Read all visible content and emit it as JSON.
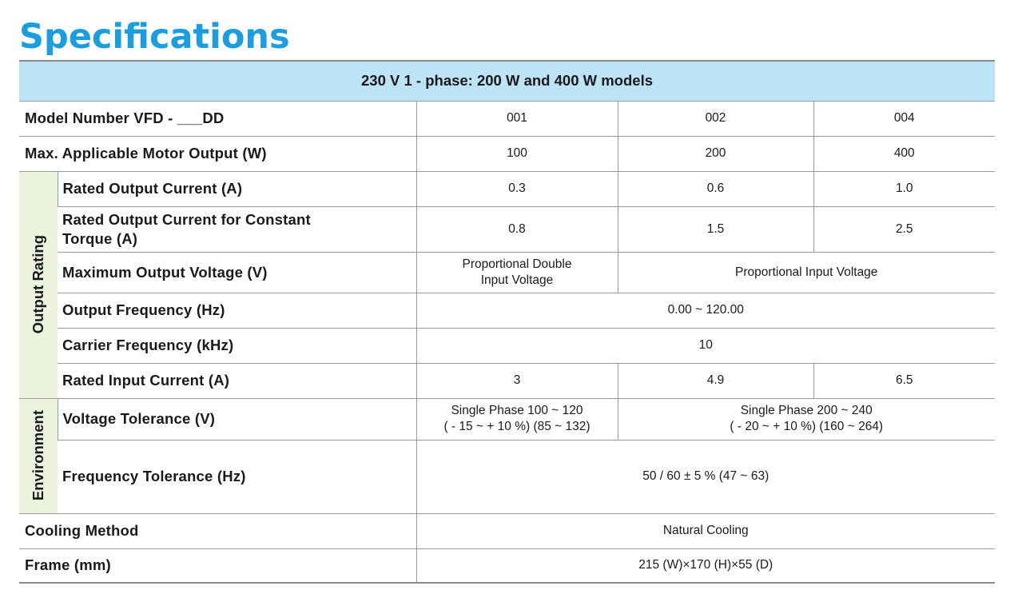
{
  "title": "Specifications",
  "table": {
    "caption": "230 V 1 - phase: 200 W and 400 W models",
    "groups": {
      "output": "Output Rating",
      "environment": "Environment"
    },
    "rows": {
      "model": {
        "label": "Model Number VFD - ___DD",
        "v1": "001",
        "v2": "002",
        "v3": "004"
      },
      "motor": {
        "label": "Max. Applicable Motor Output (W)",
        "v1": "100",
        "v2": "200",
        "v3": "400"
      },
      "rated_current": {
        "label": "Rated Output Current (A)",
        "v1": "0.3",
        "v2": "0.6",
        "v3": "1.0"
      },
      "rated_current_ct": {
        "label_line1": "Rated Output Current for Constant",
        "label_line2": "Torque (A)",
        "v1": "0.8",
        "v2": "1.5",
        "v3": "2.5"
      },
      "max_voltage": {
        "label": "Maximum Output Voltage (V)",
        "v1_line1": "Proportional Double",
        "v1_line2": "Input Voltage",
        "v23": "Proportional Input Voltage"
      },
      "out_freq": {
        "label": "Output Frequency (Hz)",
        "value": "0.00 ~ 120.00"
      },
      "carrier": {
        "label": "Carrier Frequency (kHz)",
        "value": "10"
      },
      "input_current": {
        "label": "Rated Input Current (A)",
        "v1": "3",
        "v2": "4.9",
        "v3": "6.5"
      },
      "voltage_tol": {
        "label": "Voltage Tolerance (V)",
        "v1_line1": "Single Phase 100 ~ 120",
        "v1_line2": "( - 15 ~ + 10 %) (85 ~ 132)",
        "v23_line1": "Single Phase 200 ~ 240",
        "v23_line2": "( - 20 ~ + 10 %) (160 ~ 264)"
      },
      "freq_tol": {
        "label": "Frequency Tolerance (Hz)",
        "value": "50 / 60 ± 5 % (47 ~ 63)"
      },
      "cooling": {
        "label": "Cooling Method",
        "value": "Natural Cooling"
      },
      "frame": {
        "label": "Frame (mm)",
        "value": "215 (W)×170 (H)×55 (D)"
      }
    }
  }
}
